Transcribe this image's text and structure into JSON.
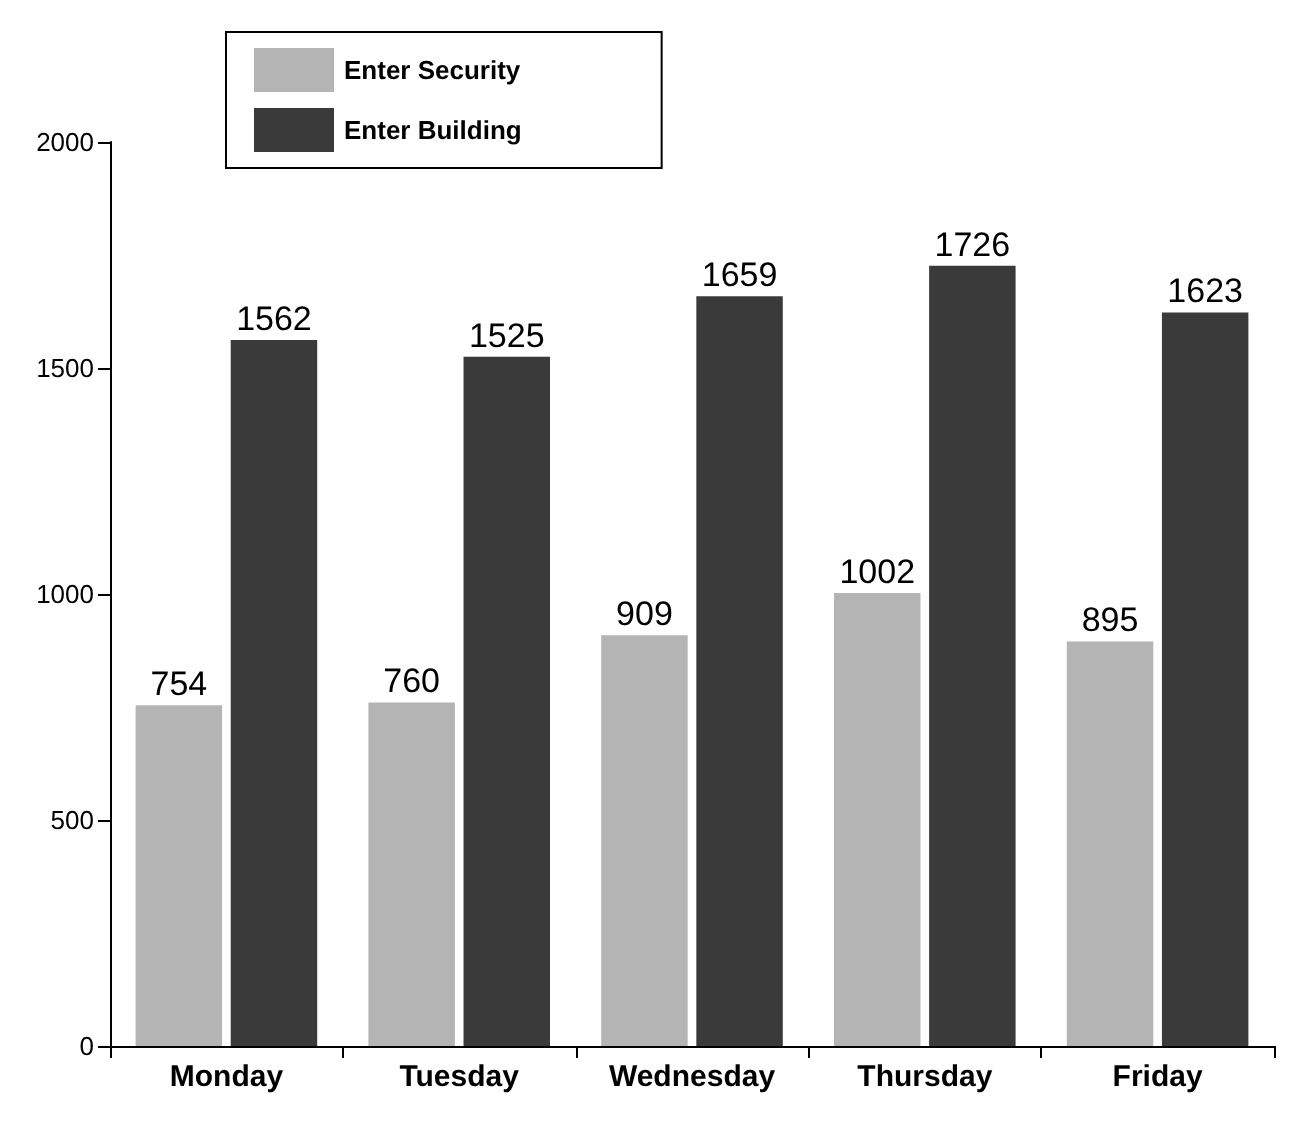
{
  "chart_data": {
    "type": "bar",
    "categories": [
      "Monday",
      "Tuesday",
      "Wednesday",
      "Thursday",
      "Friday"
    ],
    "series": [
      {
        "name": "Enter Security",
        "color": "#b4b4b4",
        "values": [
          754,
          760,
          909,
          1002,
          895
        ]
      },
      {
        "name": "Enter Building",
        "color": "#3a3a3a",
        "values": [
          1562,
          1525,
          1659,
          1726,
          1623
        ]
      }
    ],
    "ylim": [
      0,
      2000
    ],
    "yticks": [
      0,
      500,
      1000,
      1500,
      2000
    ],
    "grid": false,
    "legend": "top left",
    "data_labels": true
  }
}
